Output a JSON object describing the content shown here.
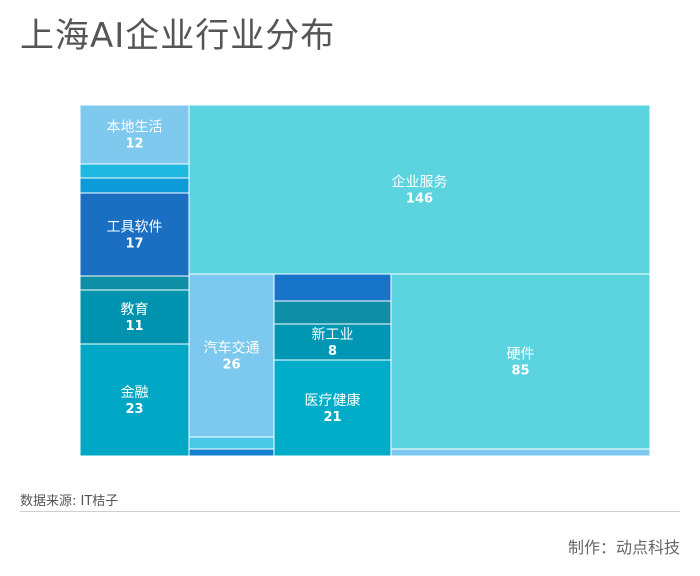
{
  "title": "上海AI企业行业分布",
  "source": "数据来源: IT桔子",
  "credit": "制作：动点科技",
  "chart_data": {
    "type": "treemap",
    "title": "上海AI企业行业分布",
    "unit": "",
    "items": [
      {
        "name": "企业服务",
        "value": 146,
        "color": "#5BD4E0"
      },
      {
        "name": "硬件",
        "value": 85,
        "color": "#5BD4E0"
      },
      {
        "name": "汽车交通",
        "value": 26,
        "color": "#7DC8EE"
      },
      {
        "name": "金融",
        "value": 23,
        "color": "#00A7C4"
      },
      {
        "name": "医疗健康",
        "value": 21,
        "color": "#00ADC9"
      },
      {
        "name": "工具软件",
        "value": 17,
        "color": "#1A6FC2"
      },
      {
        "name": "本地生活",
        "value": 12,
        "color": "#7FC9EE"
      },
      {
        "name": "教育",
        "value": 11,
        "color": "#0093AF"
      },
      {
        "name": "新工业",
        "value": 8,
        "color": "#0097B5"
      }
    ],
    "unlabeled_tile_colors": [
      "#1EB8E0",
      "#0E9AD8",
      "#0E8FA5",
      "#48C8E4",
      "#1380D0",
      "#1874C8",
      "#0E8FA5",
      "#7DC8EE"
    ]
  }
}
